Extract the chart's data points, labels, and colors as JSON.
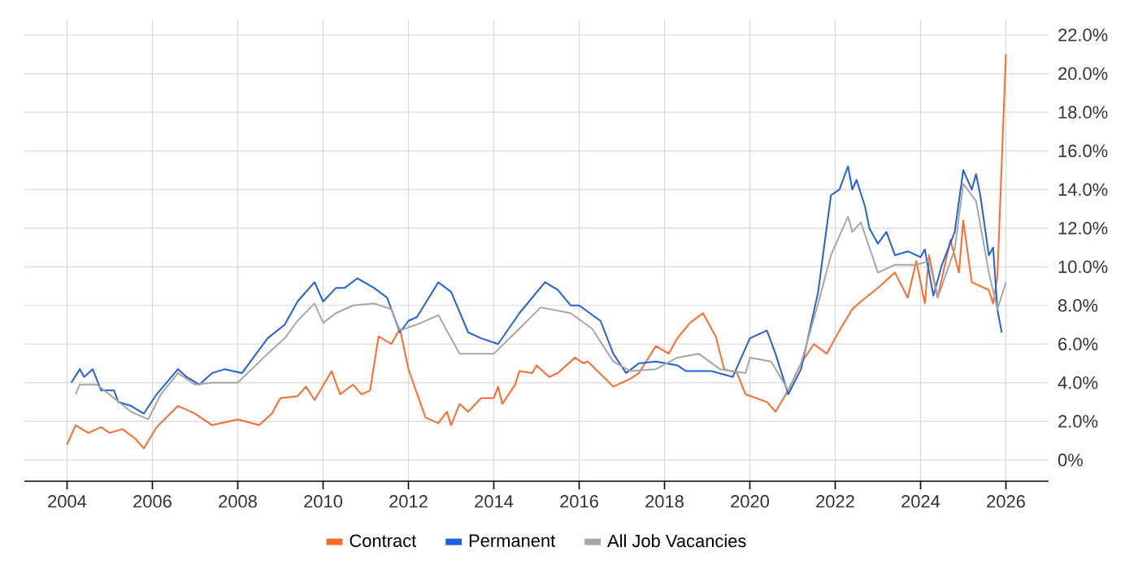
{
  "chart_data": {
    "type": "line",
    "marker": "none",
    "line_style": "solid",
    "grid": true,
    "legend": "bottom",
    "xlim": [
      2003.0,
      2027.0
    ],
    "xticks": [
      2004,
      2006,
      2008,
      2010,
      2012,
      2014,
      2016,
      2018,
      2020,
      2022,
      2024,
      2026
    ],
    "ylim": [
      -1.1,
      22.8
    ],
    "yticks": [
      {
        "value": 0,
        "label": "0%"
      },
      {
        "value": 2,
        "label": "2.0%"
      },
      {
        "value": 4,
        "label": "4.0%"
      },
      {
        "value": 6,
        "label": "6.0%"
      },
      {
        "value": 8,
        "label": "8.0%"
      },
      {
        "value": 10,
        "label": "10.0%"
      },
      {
        "value": 12,
        "label": "12.0%"
      },
      {
        "value": 14,
        "label": "14.0%"
      },
      {
        "value": 16,
        "label": "16.0%"
      },
      {
        "value": 18,
        "label": "18.0%"
      },
      {
        "value": 20,
        "label": "20.0%"
      },
      {
        "value": 22,
        "label": "22.0%"
      }
    ],
    "series": [
      {
        "name": "Contract",
        "color": "#ff6a28",
        "x": [
          2004.0,
          2004.2,
          2004.5,
          2004.8,
          2005.0,
          2005.3,
          2005.6,
          2005.8,
          2006.1,
          2006.6,
          2007.0,
          2007.4,
          2008.0,
          2008.5,
          2008.8,
          2009.0,
          2009.4,
          2009.6,
          2009.8,
          2010.2,
          2010.4,
          2010.7,
          2010.9,
          2011.1,
          2011.3,
          2011.6,
          2011.8,
          2012.0,
          2012.4,
          2012.7,
          2012.9,
          2013.0,
          2013.2,
          2013.4,
          2013.7,
          2014.0,
          2014.1,
          2014.2,
          2014.5,
          2014.6,
          2014.9,
          2015.0,
          2015.3,
          2015.5,
          2015.9,
          2016.1,
          2016.2,
          2016.8,
          2017.2,
          2017.4,
          2017.8,
          2018.1,
          2018.3,
          2018.6,
          2018.9,
          2019.2,
          2019.4,
          2019.7,
          2019.9,
          2020.4,
          2020.6,
          2020.9,
          2021.2,
          2021.5,
          2021.8,
          2022.1,
          2022.4,
          2022.6,
          2023.0,
          2023.4,
          2023.7,
          2023.9,
          2024.1,
          2024.2,
          2024.4,
          2024.7,
          2024.9,
          2025.0,
          2025.2,
          2025.6,
          2025.7,
          2025.8,
          2026.0
        ],
        "values": [
          0.8,
          1.8,
          1.4,
          1.7,
          1.4,
          1.6,
          1.1,
          0.6,
          1.7,
          2.8,
          2.4,
          1.8,
          2.1,
          1.8,
          2.4,
          3.2,
          3.3,
          3.8,
          3.1,
          4.6,
          3.4,
          3.9,
          3.4,
          3.6,
          6.4,
          6.0,
          6.8,
          4.7,
          2.2,
          1.9,
          2.5,
          1.8,
          2.9,
          2.5,
          3.2,
          3.2,
          3.8,
          2.9,
          3.9,
          4.6,
          4.5,
          4.9,
          4.3,
          4.5,
          5.3,
          5.0,
          5.1,
          3.8,
          4.2,
          4.5,
          5.9,
          5.5,
          6.3,
          7.1,
          7.6,
          6.4,
          4.7,
          4.5,
          3.4,
          3.0,
          2.5,
          3.6,
          5.0,
          6.0,
          5.5,
          6.7,
          7.8,
          8.2,
          8.9,
          9.7,
          8.4,
          10.3,
          8.1,
          10.6,
          8.4,
          11.4,
          9.7,
          12.4,
          9.2,
          8.8,
          8.1,
          9.5,
          21.0
        ]
      },
      {
        "name": "Permanent",
        "color": "#1f5fe0",
        "x": [
          2004.1,
          2004.3,
          2004.4,
          2004.6,
          2004.8,
          2005.1,
          2005.2,
          2005.5,
          2005.8,
          2006.1,
          2006.6,
          2006.8,
          2007.1,
          2007.4,
          2007.7,
          2008.1,
          2008.7,
          2009.1,
          2009.4,
          2009.8,
          2010.0,
          2010.3,
          2010.5,
          2010.8,
          2011.2,
          2011.5,
          2011.8,
          2012.0,
          2012.2,
          2012.7,
          2013.0,
          2013.4,
          2013.7,
          2014.1,
          2014.6,
          2014.9,
          2015.2,
          2015.5,
          2015.8,
          2016.0,
          2016.5,
          2016.8,
          2017.1,
          2017.4,
          2017.8,
          2018.3,
          2018.5,
          2019.1,
          2019.6,
          2020.0,
          2020.4,
          2020.6,
          2020.9,
          2021.2,
          2021.6,
          2021.9,
          2022.1,
          2022.3,
          2022.4,
          2022.5,
          2022.7,
          2022.8,
          2023.0,
          2023.2,
          2023.4,
          2023.7,
          2024.0,
          2024.1,
          2024.3,
          2024.5,
          2024.8,
          2025.0,
          2025.2,
          2025.3,
          2025.4,
          2025.6,
          2025.7,
          2025.8,
          2025.9
        ],
        "values": [
          4.0,
          4.7,
          4.3,
          4.7,
          3.6,
          3.6,
          3.0,
          2.8,
          2.4,
          3.4,
          4.7,
          4.3,
          3.9,
          4.5,
          4.7,
          4.5,
          6.3,
          7.0,
          8.2,
          9.2,
          8.2,
          8.9,
          8.9,
          9.4,
          8.9,
          8.4,
          6.6,
          7.2,
          7.4,
          9.2,
          8.7,
          6.6,
          6.3,
          6.0,
          7.6,
          8.4,
          9.2,
          8.8,
          8.0,
          8.0,
          7.2,
          5.5,
          4.5,
          5.0,
          5.1,
          4.9,
          4.6,
          4.6,
          4.3,
          6.3,
          6.7,
          5.5,
          3.4,
          4.7,
          8.7,
          13.7,
          14.0,
          15.2,
          14.0,
          14.5,
          13.1,
          12.0,
          11.2,
          11.8,
          10.6,
          10.8,
          10.5,
          10.9,
          8.5,
          10.1,
          11.8,
          15.0,
          14.0,
          14.8,
          13.7,
          10.6,
          11.0,
          7.8,
          6.6
        ]
      },
      {
        "name": "All Job Vacancies",
        "color": "#a6a6a6",
        "x": [
          2004.2,
          2004.3,
          2004.7,
          2005.1,
          2005.5,
          2005.9,
          2006.2,
          2006.6,
          2007.0,
          2007.4,
          2008.0,
          2008.7,
          2009.1,
          2009.4,
          2009.8,
          2010.0,
          2010.3,
          2010.7,
          2011.2,
          2011.6,
          2011.8,
          2012.3,
          2012.7,
          2013.2,
          2014.0,
          2014.6,
          2015.1,
          2015.8,
          2016.3,
          2016.8,
          2017.2,
          2017.8,
          2018.3,
          2018.8,
          2019.3,
          2019.9,
          2020.0,
          2020.5,
          2020.9,
          2021.2,
          2021.6,
          2021.9,
          2022.3,
          2022.4,
          2022.6,
          2023.0,
          2023.4,
          2023.9,
          2024.2,
          2024.4,
          2024.8,
          2025.0,
          2025.3,
          2025.6,
          2025.8,
          2026.0
        ],
        "values": [
          3.4,
          3.9,
          3.9,
          3.2,
          2.5,
          2.1,
          3.4,
          4.5,
          3.9,
          4.0,
          4.0,
          5.5,
          6.3,
          7.2,
          8.1,
          7.1,
          7.6,
          8.0,
          8.1,
          7.8,
          6.7,
          7.1,
          7.5,
          5.5,
          5.5,
          6.8,
          7.9,
          7.6,
          6.8,
          5.1,
          4.6,
          4.7,
          5.3,
          5.5,
          4.7,
          4.5,
          5.3,
          5.1,
          3.6,
          5.0,
          8.1,
          10.6,
          12.6,
          11.8,
          12.3,
          9.7,
          10.1,
          10.1,
          10.3,
          8.4,
          10.9,
          14.3,
          13.4,
          9.7,
          7.8,
          9.2
        ]
      }
    ]
  }
}
